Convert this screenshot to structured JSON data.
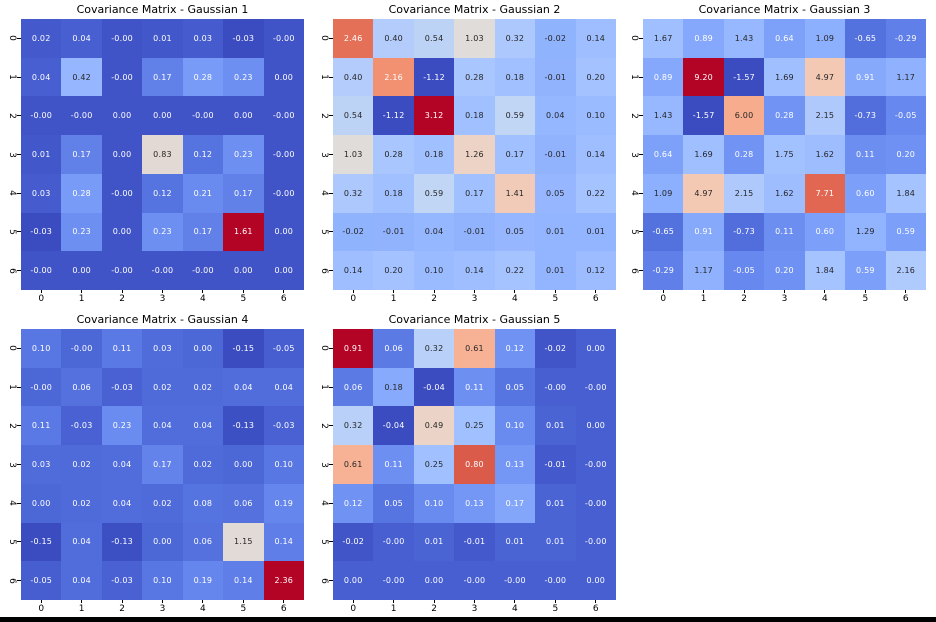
{
  "figure": {
    "background": "#ffffff",
    "bottom_bar_color": "#000000"
  },
  "colormap": {
    "name": "coolwarm",
    "low": "#3b4cc0",
    "mid": "#dddddd",
    "high": "#b40426",
    "annotation_dark_text": "#262626",
    "annotation_light_text": "#ffffff",
    "luminance_threshold": 0.408,
    "stops": [
      [
        59,
        76,
        192
      ],
      [
        68,
        90,
        204
      ],
      [
        77,
        104,
        215
      ],
      [
        87,
        117,
        225
      ],
      [
        98,
        130,
        234
      ],
      [
        108,
        142,
        241
      ],
      [
        119,
        154,
        247
      ],
      [
        130,
        165,
        251
      ],
      [
        141,
        176,
        254
      ],
      [
        152,
        185,
        255
      ],
      [
        163,
        194,
        255
      ],
      [
        174,
        201,
        253
      ],
      [
        184,
        208,
        249
      ],
      [
        194,
        213,
        244
      ],
      [
        204,
        217,
        238
      ],
      [
        213,
        219,
        230
      ],
      [
        221,
        221,
        221
      ],
      [
        229,
        216,
        209
      ],
      [
        236,
        211,
        197
      ],
      [
        241,
        204,
        185
      ],
      [
        245,
        196,
        173
      ],
      [
        247,
        187,
        160
      ],
      [
        247,
        177,
        148
      ],
      [
        247,
        166,
        135
      ],
      [
        244,
        154,
        123
      ],
      [
        241,
        141,
        111
      ],
      [
        236,
        127,
        99
      ],
      [
        229,
        112,
        88
      ],
      [
        222,
        96,
        77
      ],
      [
        213,
        80,
        66
      ],
      [
        203,
        62,
        56
      ],
      [
        192,
        40,
        47
      ],
      [
        180,
        4,
        38
      ]
    ]
  },
  "chart_data": [
    {
      "type": "heatmap",
      "title": "Covariance Matrix - Gaussian 1",
      "x_ticks": [
        "0",
        "1",
        "2",
        "3",
        "4",
        "5",
        "6"
      ],
      "y_ticks": [
        "0",
        "1",
        "2",
        "3",
        "4",
        "5",
        "6"
      ],
      "colormap": "coolwarm",
      "vmin": -0.03,
      "vmax": 1.61,
      "colorbar": false,
      "grid": false,
      "legend": "none",
      "values": [
        [
          "0.02",
          "0.04",
          "-0.00",
          "0.01",
          "0.03",
          "-0.03",
          "-0.00"
        ],
        [
          "0.04",
          "0.42",
          "-0.00",
          "0.17",
          "0.28",
          "0.23",
          "0.00"
        ],
        [
          "-0.00",
          "-0.00",
          "0.00",
          "0.00",
          "-0.00",
          "0.00",
          "-0.00"
        ],
        [
          "0.01",
          "0.17",
          "0.00",
          "0.83",
          "0.12",
          "0.23",
          "-0.00"
        ],
        [
          "0.03",
          "0.28",
          "-0.00",
          "0.12",
          "0.21",
          "0.17",
          "-0.00"
        ],
        [
          "-0.03",
          "0.23",
          "0.00",
          "0.23",
          "0.17",
          "1.61",
          "0.00"
        ],
        [
          "-0.00",
          "0.00",
          "-0.00",
          "-0.00",
          "-0.00",
          "0.00",
          "0.00"
        ]
      ]
    },
    {
      "type": "heatmap",
      "title": "Covariance Matrix - Gaussian 2",
      "x_ticks": [
        "0",
        "1",
        "2",
        "3",
        "4",
        "5",
        "6"
      ],
      "y_ticks": [
        "0",
        "1",
        "2",
        "3",
        "4",
        "5",
        "6"
      ],
      "colormap": "coolwarm",
      "vmin": -1.12,
      "vmax": 3.12,
      "colorbar": false,
      "grid": false,
      "legend": "none",
      "values": [
        [
          "2.46",
          "0.40",
          "0.54",
          "1.03",
          "0.32",
          "-0.02",
          "0.14"
        ],
        [
          "0.40",
          "2.16",
          "-1.12",
          "0.28",
          "0.18",
          "-0.01",
          "0.20"
        ],
        [
          "0.54",
          "-1.12",
          "3.12",
          "0.18",
          "0.59",
          "0.04",
          "0.10"
        ],
        [
          "1.03",
          "0.28",
          "0.18",
          "1.26",
          "0.17",
          "-0.01",
          "0.14"
        ],
        [
          "0.32",
          "0.18",
          "0.59",
          "0.17",
          "1.41",
          "0.05",
          "0.22"
        ],
        [
          "-0.02",
          "-0.01",
          "0.04",
          "-0.01",
          "0.05",
          "0.01",
          "0.01"
        ],
        [
          "0.14",
          "0.20",
          "0.10",
          "0.14",
          "0.22",
          "0.01",
          "0.12"
        ]
      ]
    },
    {
      "type": "heatmap",
      "title": "Covariance Matrix - Gaussian 3",
      "x_ticks": [
        "0",
        "1",
        "2",
        "3",
        "4",
        "5",
        "6"
      ],
      "y_ticks": [
        "0",
        "1",
        "2",
        "3",
        "4",
        "5",
        "6"
      ],
      "colormap": "coolwarm",
      "vmin": -1.57,
      "vmax": 9.2,
      "colorbar": false,
      "grid": false,
      "legend": "none",
      "values": [
        [
          "1.67",
          "0.89",
          "1.43",
          "0.64",
          "1.09",
          "-0.65",
          "-0.29"
        ],
        [
          "0.89",
          "9.20",
          "-1.57",
          "1.69",
          "4.97",
          "0.91",
          "1.17"
        ],
        [
          "1.43",
          "-1.57",
          "6.00",
          "0.28",
          "2.15",
          "-0.73",
          "-0.05"
        ],
        [
          "0.64",
          "1.69",
          "0.28",
          "1.75",
          "1.62",
          "0.11",
          "0.20"
        ],
        [
          "1.09",
          "4.97",
          "2.15",
          "1.62",
          "7.71",
          "0.60",
          "1.84"
        ],
        [
          "-0.65",
          "0.91",
          "-0.73",
          "0.11",
          "0.60",
          "1.29",
          "0.59"
        ],
        [
          "-0.29",
          "1.17",
          "-0.05",
          "0.20",
          "1.84",
          "0.59",
          "2.16"
        ]
      ]
    },
    {
      "type": "heatmap",
      "title": "Covariance Matrix - Gaussian 4",
      "x_ticks": [
        "0",
        "1",
        "2",
        "3",
        "4",
        "5",
        "6"
      ],
      "y_ticks": [
        "0",
        "1",
        "2",
        "3",
        "4",
        "5",
        "6"
      ],
      "colormap": "coolwarm",
      "vmin": -0.15,
      "vmax": 2.36,
      "colorbar": false,
      "grid": false,
      "legend": "none",
      "values": [
        [
          "0.10",
          "-0.00",
          "0.11",
          "0.03",
          "0.00",
          "-0.15",
          "-0.05"
        ],
        [
          "-0.00",
          "0.06",
          "-0.03",
          "0.02",
          "0.02",
          "0.04",
          "0.04"
        ],
        [
          "0.11",
          "-0.03",
          "0.23",
          "0.04",
          "0.04",
          "-0.13",
          "-0.03"
        ],
        [
          "0.03",
          "0.02",
          "0.04",
          "0.17",
          "0.02",
          "0.00",
          "0.10"
        ],
        [
          "0.00",
          "0.02",
          "0.04",
          "0.02",
          "0.08",
          "0.06",
          "0.19"
        ],
        [
          "-0.15",
          "0.04",
          "-0.13",
          "0.00",
          "0.06",
          "1.15",
          "0.14"
        ],
        [
          "-0.05",
          "0.04",
          "-0.03",
          "0.10",
          "0.19",
          "0.14",
          "2.36"
        ]
      ]
    },
    {
      "type": "heatmap",
      "title": "Covariance Matrix - Gaussian 5",
      "x_ticks": [
        "0",
        "1",
        "2",
        "3",
        "4",
        "5",
        "6"
      ],
      "y_ticks": [
        "0",
        "1",
        "2",
        "3",
        "4",
        "5",
        "6"
      ],
      "colormap": "coolwarm",
      "vmin": -0.04,
      "vmax": 0.91,
      "colorbar": false,
      "grid": false,
      "legend": "none",
      "values": [
        [
          "0.91",
          "0.06",
          "0.32",
          "0.61",
          "0.12",
          "-0.02",
          "0.00"
        ],
        [
          "0.06",
          "0.18",
          "-0.04",
          "0.11",
          "0.05",
          "-0.00",
          "-0.00"
        ],
        [
          "0.32",
          "-0.04",
          "0.49",
          "0.25",
          "0.10",
          "0.01",
          "0.00"
        ],
        [
          "0.61",
          "0.11",
          "0.25",
          "0.80",
          "0.13",
          "-0.01",
          "-0.00"
        ],
        [
          "0.12",
          "0.05",
          "0.10",
          "0.13",
          "0.17",
          "0.01",
          "-0.00"
        ],
        [
          "-0.02",
          "-0.00",
          "0.01",
          "-0.01",
          "0.01",
          "0.01",
          "-0.00"
        ],
        [
          "0.00",
          "-0.00",
          "0.00",
          "-0.00",
          "-0.00",
          "-0.00",
          "0.00"
        ]
      ]
    }
  ]
}
